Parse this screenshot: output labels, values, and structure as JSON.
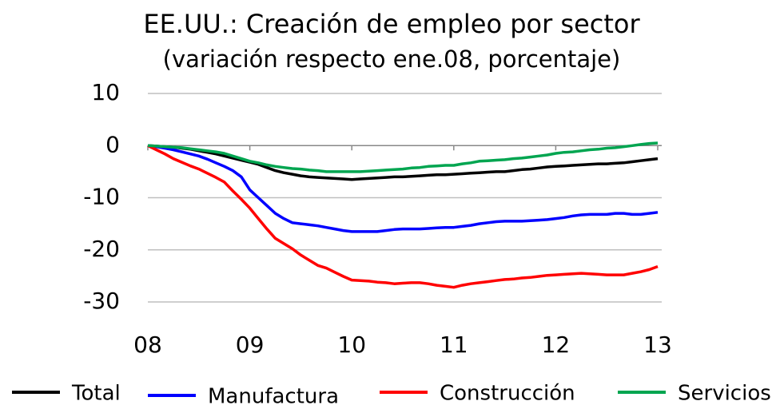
{
  "chart_data": {
    "type": "line",
    "title": "EE.UU.: Creación de empleo por sector",
    "subtitle": "(variación respecto ene.08, porcentaje)",
    "categories": [
      "08",
      null,
      null,
      null,
      null,
      null,
      null,
      null,
      null,
      null,
      null,
      null,
      "09",
      null,
      null,
      null,
      null,
      null,
      null,
      null,
      null,
      null,
      null,
      null,
      "10",
      null,
      null,
      null,
      null,
      null,
      null,
      null,
      null,
      null,
      null,
      null,
      "11",
      null,
      null,
      null,
      null,
      null,
      null,
      null,
      null,
      null,
      null,
      null,
      "12",
      null,
      null,
      null,
      null,
      null,
      null,
      null,
      null,
      null,
      null,
      null,
      "13"
    ],
    "series": [
      {
        "name": "Total",
        "color": "#000000",
        "values": [
          0,
          -0.1,
          -0.2,
          -0.3,
          -0.5,
          -0.7,
          -1,
          -1.3,
          -1.6,
          -2,
          -2.4,
          -2.8,
          -3.2,
          -3.6,
          -4.2,
          -4.8,
          -5.2,
          -5.5,
          -5.8,
          -6,
          -6.1,
          -6.2,
          -6.3,
          -6.4,
          -6.5,
          -6.4,
          -6.3,
          -6.2,
          -6.1,
          -6,
          -6,
          -5.9,
          -5.8,
          -5.7,
          -5.6,
          -5.6,
          -5.5,
          -5.4,
          -5.3,
          -5.2,
          -5.1,
          -5,
          -5,
          -4.8,
          -4.6,
          -4.5,
          -4.3,
          -4.1,
          -4,
          -3.9,
          -3.8,
          -3.7,
          -3.6,
          -3.5,
          -3.5,
          -3.4,
          -3.3,
          -3.1,
          -2.9,
          -2.7,
          -2.5
        ]
      },
      {
        "name": "Manufactura",
        "color": "#0000ff",
        "values": [
          0,
          -0.2,
          -0.5,
          -0.8,
          -1.2,
          -1.6,
          -2,
          -2.6,
          -3.3,
          -4,
          -4.8,
          -6,
          -8.5,
          -10,
          -11.5,
          -13,
          -14,
          -14.8,
          -15,
          -15.2,
          -15.4,
          -15.7,
          -16,
          -16.3,
          -16.5,
          -16.5,
          -16.5,
          -16.5,
          -16.3,
          -16.1,
          -16,
          -16,
          -16,
          -15.9,
          -15.8,
          -15.7,
          -15.7,
          -15.5,
          -15.3,
          -15,
          -14.8,
          -14.6,
          -14.5,
          -14.5,
          -14.5,
          -14.4,
          -14.3,
          -14.2,
          -14,
          -13.8,
          -13.5,
          -13.3,
          -13.2,
          -13.2,
          -13.2,
          -13,
          -13,
          -13.2,
          -13.2,
          -13,
          -12.8
        ]
      },
      {
        "name": "Construcción",
        "color": "#ff0000",
        "values": [
          0,
          -0.8,
          -1.6,
          -2.5,
          -3.2,
          -3.9,
          -4.5,
          -5.3,
          -6.1,
          -7,
          -8.7,
          -10.3,
          -12,
          -14,
          -16,
          -17.8,
          -18.8,
          -19.8,
          -21,
          -22,
          -23,
          -23.5,
          -24.3,
          -25.1,
          -25.8,
          -25.9,
          -26,
          -26.2,
          -26.3,
          -26.5,
          -26.4,
          -26.3,
          -26.3,
          -26.5,
          -26.8,
          -27,
          -27.2,
          -26.8,
          -26.5,
          -26.3,
          -26.1,
          -25.9,
          -25.7,
          -25.6,
          -25.4,
          -25.3,
          -25.1,
          -24.9,
          -24.8,
          -24.7,
          -24.6,
          -24.5,
          -24.6,
          -24.7,
          -24.8,
          -24.8,
          -24.8,
          -24.5,
          -24.2,
          -23.8,
          -23.2
        ]
      },
      {
        "name": "Servicios",
        "color": "#00a550",
        "values": [
          0,
          -0.1,
          -0.2,
          -0.3,
          -0.4,
          -0.6,
          -0.8,
          -1,
          -1.2,
          -1.5,
          -2,
          -2.5,
          -3,
          -3.3,
          -3.7,
          -4,
          -4.2,
          -4.4,
          -4.5,
          -4.7,
          -4.8,
          -5,
          -5,
          -5,
          -5,
          -5,
          -4.9,
          -4.8,
          -4.7,
          -4.6,
          -4.5,
          -4.3,
          -4.2,
          -4,
          -3.9,
          -3.8,
          -3.8,
          -3.5,
          -3.3,
          -3,
          -2.9,
          -2.8,
          -2.7,
          -2.5,
          -2.4,
          -2.2,
          -2,
          -1.8,
          -1.5,
          -1.3,
          -1.2,
          -1,
          -0.8,
          -0.7,
          -0.5,
          -0.4,
          -0.2,
          0,
          0.2,
          0.4,
          0.5
        ]
      }
    ],
    "ylim": [
      -30,
      10
    ],
    "yticks": [
      10,
      0,
      -10,
      -20,
      -30
    ],
    "grid": true
  }
}
